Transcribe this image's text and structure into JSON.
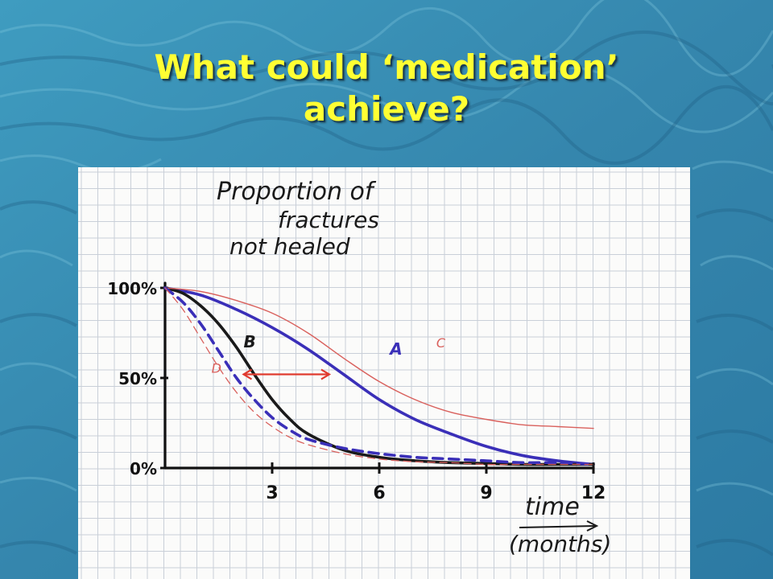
{
  "slide": {
    "title_line1": "What could ‘medication’",
    "title_line2": "achieve?",
    "title_color": "#ffff33",
    "background_color": "#3b8fb3"
  },
  "chart_data": {
    "type": "line",
    "title": "Proportion of fractures not healed",
    "ylabel_lines": [
      "Proportion of",
      "fractures",
      "not healed"
    ],
    "xlabel": "time",
    "xlabel_sub": "(months)",
    "xlim": [
      0,
      12
    ],
    "ylim": [
      0,
      100
    ],
    "x_ticks": [
      3,
      6,
      9,
      12
    ],
    "y_ticks": [
      {
        "value": 100,
        "label": "100%"
      },
      {
        "value": 50,
        "label": "50%"
      },
      {
        "value": 0,
        "label": "0%"
      }
    ],
    "grid": true,
    "series": [
      {
        "name": "A",
        "color": "#3a2fb8",
        "style": "solid-thick",
        "x": [
          0,
          1,
          2,
          3,
          4,
          5,
          6,
          7,
          8,
          9,
          10,
          11,
          12
        ],
        "y": [
          100,
          96,
          88,
          78,
          66,
          52,
          38,
          27,
          19,
          12,
          7,
          4,
          2
        ]
      },
      {
        "name": "B",
        "color": "#1a1a1a",
        "style": "solid-thick",
        "x": [
          0,
          0.5,
          1,
          1.5,
          2,
          2.5,
          3,
          3.5,
          4,
          5,
          6,
          7,
          8,
          9,
          10,
          11,
          12
        ],
        "y": [
          100,
          97,
          90,
          80,
          67,
          52,
          38,
          27,
          19,
          10,
          6,
          4,
          3,
          2.5,
          2,
          2,
          2
        ]
      },
      {
        "name": "C",
        "color": "#d9605c",
        "style": "solid-thin",
        "x": [
          0,
          1,
          2,
          3,
          4,
          5,
          6,
          7,
          8,
          9,
          10,
          11,
          12
        ],
        "y": [
          100,
          98,
          93,
          86,
          75,
          61,
          48,
          38,
          31,
          27,
          24,
          23,
          22
        ]
      },
      {
        "name": "",
        "color": "#3a2fb8",
        "style": "dashed-thick",
        "x": [
          0,
          0.5,
          1,
          1.5,
          2,
          2.5,
          3,
          3.5,
          4,
          5,
          6,
          7,
          8,
          9,
          10,
          11,
          12
        ],
        "y": [
          100,
          92,
          80,
          65,
          50,
          38,
          28,
          21,
          16,
          11,
          8,
          6,
          5,
          4,
          3,
          3,
          2
        ]
      },
      {
        "name": "D",
        "color": "#d9605c",
        "style": "dashed-thin",
        "x": [
          0,
          0.5,
          1,
          1.5,
          2,
          2.5,
          3,
          3.5,
          4,
          5,
          6,
          7,
          8,
          9,
          10,
          11,
          12
        ],
        "y": [
          100,
          88,
          72,
          56,
          42,
          31,
          23,
          17,
          13,
          8,
          5,
          3.5,
          3,
          2,
          2,
          2,
          2
        ]
      }
    ],
    "annotations": [
      {
        "type": "double-arrow",
        "color": "#e03a2f",
        "x_from": 2.2,
        "x_to": 4.6,
        "y": 52
      }
    ]
  }
}
